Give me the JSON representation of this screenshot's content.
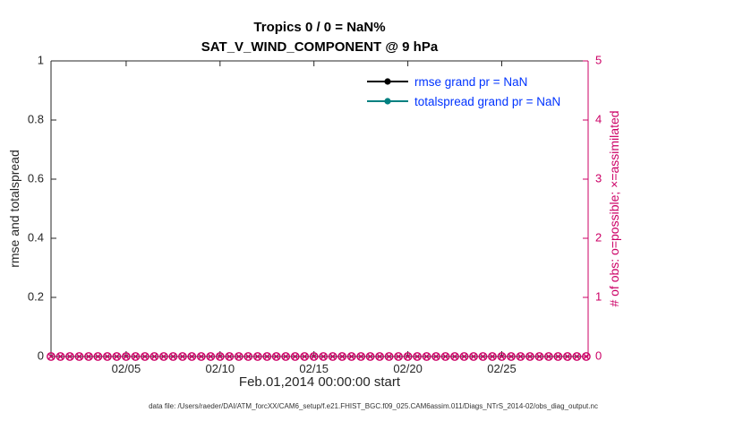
{
  "title": {
    "line1": "Tropics 0 / 0 = NaN%",
    "line2": "SAT_V_WIND_COMPONENT @ 9 hPa"
  },
  "caption": "data file: /Users/raeder/DAI/ATM_forcXX/CAM6_setup/f.e21.FHIST_BGC.f09_025.CAM6assim.011/Diags_NTrS_2014-02/obs_diag_output.nc",
  "colors": {
    "axis": "#262626",
    "obs_pink": "#cc0066",
    "rmse": "#000000",
    "totalspread": "#008080",
    "legend_text": "#0033ff"
  },
  "legend": {
    "items": [
      {
        "label": "rmse grand pr = NaN",
        "color": "#000000"
      },
      {
        "label": "totalspread grand pr = NaN",
        "color": "#008080"
      }
    ],
    "text_color": "#0033ff"
  },
  "chart_data": {
    "type": "line",
    "title": "Tropics 0 / 0 = NaN%",
    "subtitle": "SAT_V_WIND_COMPONENT @ 9 hPa",
    "xlabel": "Feb.01,2014 00:00:00 start",
    "ylabel_left": "rmse and totalspread",
    "ylabel_right": "# of obs: o=possible; ×=assimilated",
    "grid": false,
    "legend_position": "upper-right-inside",
    "xlim_days": [
      1,
      29.6
    ],
    "x_ticks": [
      {
        "day": 5,
        "label": "02/05"
      },
      {
        "day": 10,
        "label": "02/10"
      },
      {
        "day": 15,
        "label": "02/15"
      },
      {
        "day": 20,
        "label": "02/20"
      },
      {
        "day": 25,
        "label": "02/25"
      }
    ],
    "left_axis": {
      "lim": [
        0,
        1
      ],
      "ticks": [
        0,
        0.2,
        0.4,
        0.6,
        0.8,
        1
      ],
      "tick_labels": [
        "0",
        "0.2",
        "0.4",
        "0.6",
        "0.8",
        "1"
      ],
      "color": "#262626"
    },
    "right_axis": {
      "lim": [
        0,
        5
      ],
      "ticks": [
        0,
        1,
        2,
        3,
        4,
        5
      ],
      "tick_labels": [
        "0",
        "1",
        "2",
        "3",
        "4",
        "5"
      ],
      "color": "#cc0066"
    },
    "series": [
      {
        "name": "rmse grand pr = NaN",
        "axis": "left",
        "color": "#000000",
        "marker": "dot",
        "x": [],
        "y": [],
        "note": "all values NaN, nothing plotted"
      },
      {
        "name": "totalspread grand pr = NaN",
        "axis": "left",
        "color": "#008080",
        "marker": "dot",
        "x": [],
        "y": [],
        "note": "all values NaN, nothing plotted"
      },
      {
        "name": "possible obs (o)",
        "axis": "right",
        "color": "#cc0066",
        "marker": "circle",
        "x_start": 1,
        "x_end": 29.5,
        "x_step": 0.5,
        "y_const": 0
      },
      {
        "name": "assimilated obs (x)",
        "axis": "right",
        "color": "#cc0066",
        "marker": "x",
        "x_start": 1,
        "x_end": 29.5,
        "x_step": 0.5,
        "y_const": 0
      }
    ]
  }
}
